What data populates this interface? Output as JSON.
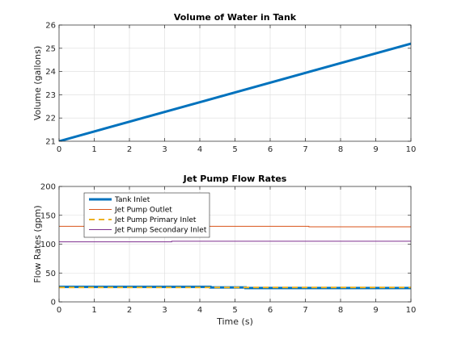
{
  "chart_data": [
    {
      "type": "line",
      "title": "Volume of Water in Tank",
      "xlabel": "",
      "ylabel": "Volume (gallons)",
      "xlim": [
        0,
        10
      ],
      "ylim": [
        21,
        26
      ],
      "xticks": [
        0,
        1,
        2,
        3,
        4,
        5,
        6,
        7,
        8,
        9,
        10
      ],
      "yticks": [
        21,
        22,
        23,
        24,
        25,
        26
      ],
      "grid": true,
      "series": [
        {
          "color": "#0072BD",
          "width": 3,
          "dash": "",
          "x": [
            0,
            10
          ],
          "y": [
            21.0,
            25.2
          ]
        }
      ]
    },
    {
      "type": "line",
      "title": "Jet Pump Flow Rates",
      "xlabel": "Time (s)",
      "ylabel": "Flow Rates (gpm)",
      "xlim": [
        0,
        10
      ],
      "ylim": [
        0,
        200
      ],
      "xticks": [
        0,
        1,
        2,
        3,
        4,
        5,
        6,
        7,
        8,
        9,
        10
      ],
      "yticks": [
        0,
        50,
        100,
        150,
        200
      ],
      "grid": true,
      "legend": "top-left",
      "series": [
        {
          "name": "Tank Inlet",
          "color": "#0072BD",
          "width": 3,
          "dash": "",
          "x": [
            0,
            4.3,
            4.3,
            5.3,
            5.3,
            10
          ],
          "y": [
            26,
            26,
            25,
            25,
            24,
            24
          ]
        },
        {
          "name": "Jet Pump Outlet",
          "color": "#D95319",
          "width": 1,
          "dash": "",
          "x": [
            0,
            7.1,
            7.1,
            10
          ],
          "y": [
            131,
            131,
            130,
            130
          ]
        },
        {
          "name": "Jet Pump Primary Inlet",
          "color": "#EDB120",
          "width": 2,
          "dash": "7,5",
          "x": [
            0,
            10
          ],
          "y": [
            25,
            25
          ]
        },
        {
          "name": "Jet Pump Secondary Inlet",
          "color": "#7E2F8E",
          "width": 1,
          "dash": "",
          "x": [
            0,
            3.2,
            3.2,
            10
          ],
          "y": [
            104,
            104,
            105,
            105
          ]
        }
      ]
    }
  ]
}
